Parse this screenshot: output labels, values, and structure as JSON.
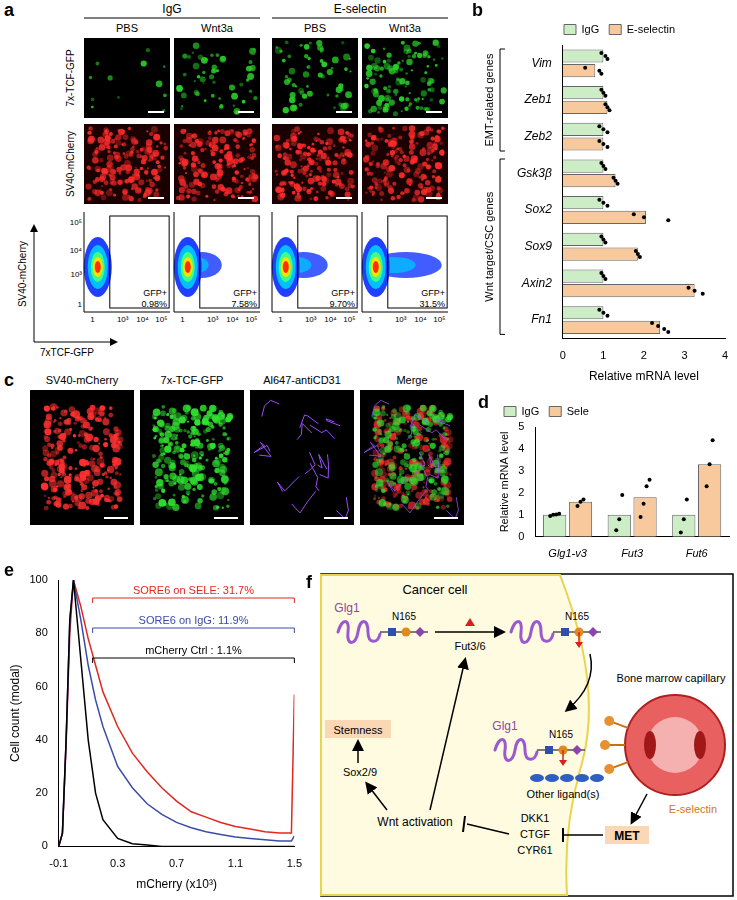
{
  "panel_a": {
    "label": "a",
    "groups": [
      "IgG",
      "E-selectin"
    ],
    "treatments": [
      "PBS",
      "Wnt3a"
    ],
    "rows": [
      "7x-TCF-GFP",
      "SV40-mCherry"
    ],
    "flow": {
      "y_label": "SV40-mCherry",
      "x_label": "7xTCF-GFP",
      "x_ticks": [
        "1",
        "10³",
        "10⁴",
        "10⁵"
      ],
      "y_ticks": [
        "1",
        "10³",
        "10⁴",
        "10⁵"
      ],
      "gate": "GFP+",
      "percentages": [
        "0.98%",
        "7.58%",
        "9.70%",
        "31.5%"
      ]
    }
  },
  "panel_c": {
    "label": "c",
    "titles": [
      "SV40-mCherry",
      "7x-TCF-GFP",
      "Al647-antiCD31",
      "Merge"
    ]
  },
  "chart_data": [
    {
      "panel": "b",
      "type": "bar",
      "orientation": "horizontal",
      "categories": [
        "Vim",
        "Zeb1",
        "Zeb2",
        "Gsk3β",
        "Sox2",
        "Sox9",
        "Axin2",
        "Fn1"
      ],
      "category_groups": [
        {
          "label": "EMT-related genes",
          "categories": [
            "Vim",
            "Zeb1",
            "Zeb2"
          ]
        },
        {
          "label": "Wnt target/CSC genes",
          "categories": [
            "Gsk3β",
            "Sox2",
            "Sox9",
            "Axin2",
            "Fn1"
          ]
        }
      ],
      "x_label": "Relative mRNA level",
      "xlim": [
        0,
        4
      ],
      "xticks": [
        0,
        1,
        2,
        3,
        4
      ],
      "grid": false,
      "legend": "top",
      "series": [
        {
          "name": "IgG",
          "color": "#ccedc6",
          "values": [
            1,
            1,
            1,
            1,
            1,
            1,
            1,
            1
          ],
          "points": [
            [
              0.95,
              1.05,
              1.1
            ],
            [
              0.95,
              1.0,
              1.05
            ],
            [
              0.9,
              1.0,
              1.1
            ],
            [
              0.95,
              1.0,
              1.05
            ],
            [
              0.9,
              1.0,
              1.1
            ],
            [
              0.95,
              1.0,
              1.05
            ],
            [
              0.95,
              1.0,
              1.05
            ],
            [
              0.9,
              1.0,
              1.1
            ]
          ]
        },
        {
          "name": "E-selectin",
          "color": "#f8c99c",
          "values": [
            0.8,
            1.1,
            1.0,
            1.3,
            2.05,
            1.85,
            3.25,
            2.4
          ],
          "points": [
            [
              0.55,
              0.9,
              0.95
            ],
            [
              1.05,
              1.1,
              1.15
            ],
            [
              0.9,
              1.0,
              1.1
            ],
            [
              1.25,
              1.3,
              1.35
            ],
            [
              1.75,
              2.0,
              2.6
            ],
            [
              1.8,
              1.85,
              1.9
            ],
            [
              3.1,
              3.25,
              3.45
            ],
            [
              2.2,
              2.35,
              2.5,
              2.6
            ]
          ]
        }
      ]
    },
    {
      "panel": "d",
      "type": "bar",
      "categories": [
        "Glg1-v3",
        "Fut3",
        "Fut6"
      ],
      "y_label": "Relative mRNA level",
      "ylim": [
        0,
        5
      ],
      "yticks": [
        0,
        1,
        2,
        3,
        4,
        5
      ],
      "grid": false,
      "legend": "top-left",
      "series": [
        {
          "name": "IgG",
          "color": "#ccedc6",
          "values": [
            1,
            1,
            1
          ],
          "points": [
            [
              0.95,
              1.0,
              1.02,
              1.05
            ],
            [
              0.3,
              0.8,
              1.9
            ],
            [
              0.2,
              0.8,
              1.7
            ]
          ]
        },
        {
          "name": "Sele",
          "color": "#f8c99c",
          "values": [
            1.6,
            1.8,
            3.3
          ],
          "points": [
            [
              1.4,
              1.6,
              1.7
            ],
            [
              0.9,
              1.5,
              2.3,
              2.6
            ],
            [
              2.3,
              3.3,
              4.4
            ]
          ]
        }
      ]
    },
    {
      "panel": "e",
      "type": "line",
      "x": [
        -0.1,
        -0.075,
        -0.05,
        -0.025,
        0,
        0.05,
        0.1,
        0.15,
        0.2,
        0.3,
        0.4,
        0.5,
        0.6,
        0.7,
        0.8,
        0.9,
        1.0,
        1.1,
        1.2,
        1.3,
        1.4,
        1.48,
        1.5
      ],
      "x_label": "mCherry (x10³)",
      "y_label": "Cell count (modal)",
      "xlim": [
        -0.1,
        1.5
      ],
      "xticks": [
        -0.1,
        0.3,
        0.7,
        1.1,
        1.5
      ],
      "ylim": [
        0,
        100
      ],
      "yticks": [
        0,
        20,
        40,
        60,
        80,
        100
      ],
      "grid": false,
      "series": [
        {
          "name": "mCherry Ctrl",
          "color": "#000000",
          "values": [
            0,
            5,
            40,
            85,
            100,
            70,
            40,
            20,
            10,
            3,
            1,
            0.5,
            0,
            0,
            0,
            0,
            0,
            0,
            0,
            0,
            0,
            0,
            0
          ]
        },
        {
          "name": "SORE6 on IgG",
          "color": "#3b4ba8",
          "values": [
            0,
            5,
            40,
            85,
            100,
            85,
            68,
            55,
            45,
            30,
            22,
            16,
            12,
            9,
            7,
            5.5,
            4.5,
            3.5,
            3,
            2.5,
            2,
            2,
            4
          ]
        },
        {
          "name": "SORE6 on SELE",
          "color": "#e0281e",
          "values": [
            0,
            5,
            38,
            80,
            100,
            90,
            78,
            68,
            58,
            45,
            35,
            28,
            22,
            17,
            13,
            11,
            9,
            7.5,
            6.5,
            5.5,
            5,
            5,
            57
          ]
        }
      ],
      "annotations": [
        {
          "text": "SORE6 on SELE: 31.7%",
          "color": "#e0281e",
          "range": [
            0.13,
            1.5
          ]
        },
        {
          "text": "SORE6 on IgG: 11.9%",
          "color": "#3b4ba8",
          "range": [
            0.13,
            1.5
          ]
        },
        {
          "text": "mCherry Ctrl : 1.1%",
          "color": "#000000",
          "range": [
            0.13,
            1.5
          ]
        }
      ]
    }
  ],
  "panel_f": {
    "label": "f",
    "cancer_cell": "Cancer cell",
    "glg1": "Glg1",
    "n165": "N165",
    "fut": "Fut3/6",
    "stemness": "Stemness",
    "sox": "Sox2/9",
    "wnt": "Wnt activation",
    "inhibitors": [
      "DKK1",
      "CTGF",
      "CYR61"
    ],
    "met": "MET",
    "other_ligands": "Other ligand(s)",
    "capillary": "Bone marrow capillary",
    "e_selectin": "E-selectin"
  }
}
